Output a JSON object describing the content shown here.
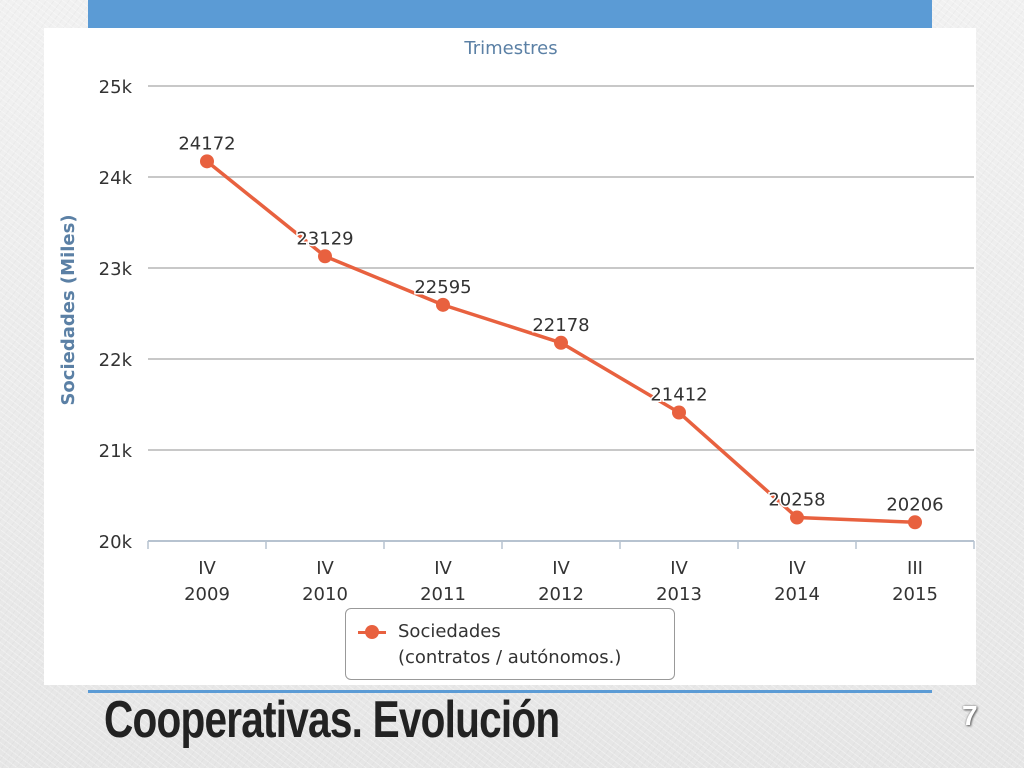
{
  "slide": {
    "title": "Cooperativas. Evolución",
    "number": "7"
  },
  "colors": {
    "accent": "#5b9bd5",
    "series": "#e8613f",
    "axis_text": "#5b80a5"
  },
  "chart_data": {
    "type": "line",
    "title": "Trimestres",
    "ylabel": "Sociedades (Miles)",
    "ylim": [
      20000,
      25000
    ],
    "yticks": [
      {
        "value": 20000,
        "label": "20k"
      },
      {
        "value": 21000,
        "label": "21k"
      },
      {
        "value": 22000,
        "label": "22k"
      },
      {
        "value": 23000,
        "label": "23k"
      },
      {
        "value": 24000,
        "label": "24k"
      },
      {
        "value": 25000,
        "label": "25k"
      }
    ],
    "categories": [
      {
        "quarter": "IV",
        "year": "2009"
      },
      {
        "quarter": "IV",
        "year": "2010"
      },
      {
        "quarter": "IV",
        "year": "2011"
      },
      {
        "quarter": "IV",
        "year": "2012"
      },
      {
        "quarter": "IV",
        "year": "2013"
      },
      {
        "quarter": "IV",
        "year": "2014"
      },
      {
        "quarter": "III",
        "year": "2015"
      }
    ],
    "series": [
      {
        "name": "Sociedades",
        "values": [
          24172,
          23129,
          22595,
          22178,
          21412,
          20258,
          20206
        ],
        "labels": [
          "24172",
          "23129",
          "22595",
          "22178",
          "21412",
          "20258",
          "20206"
        ]
      }
    ],
    "legend": {
      "position": "bottom",
      "line1": "Sociedades",
      "line2": "(contratos / autónomos.)"
    },
    "grid": true
  }
}
